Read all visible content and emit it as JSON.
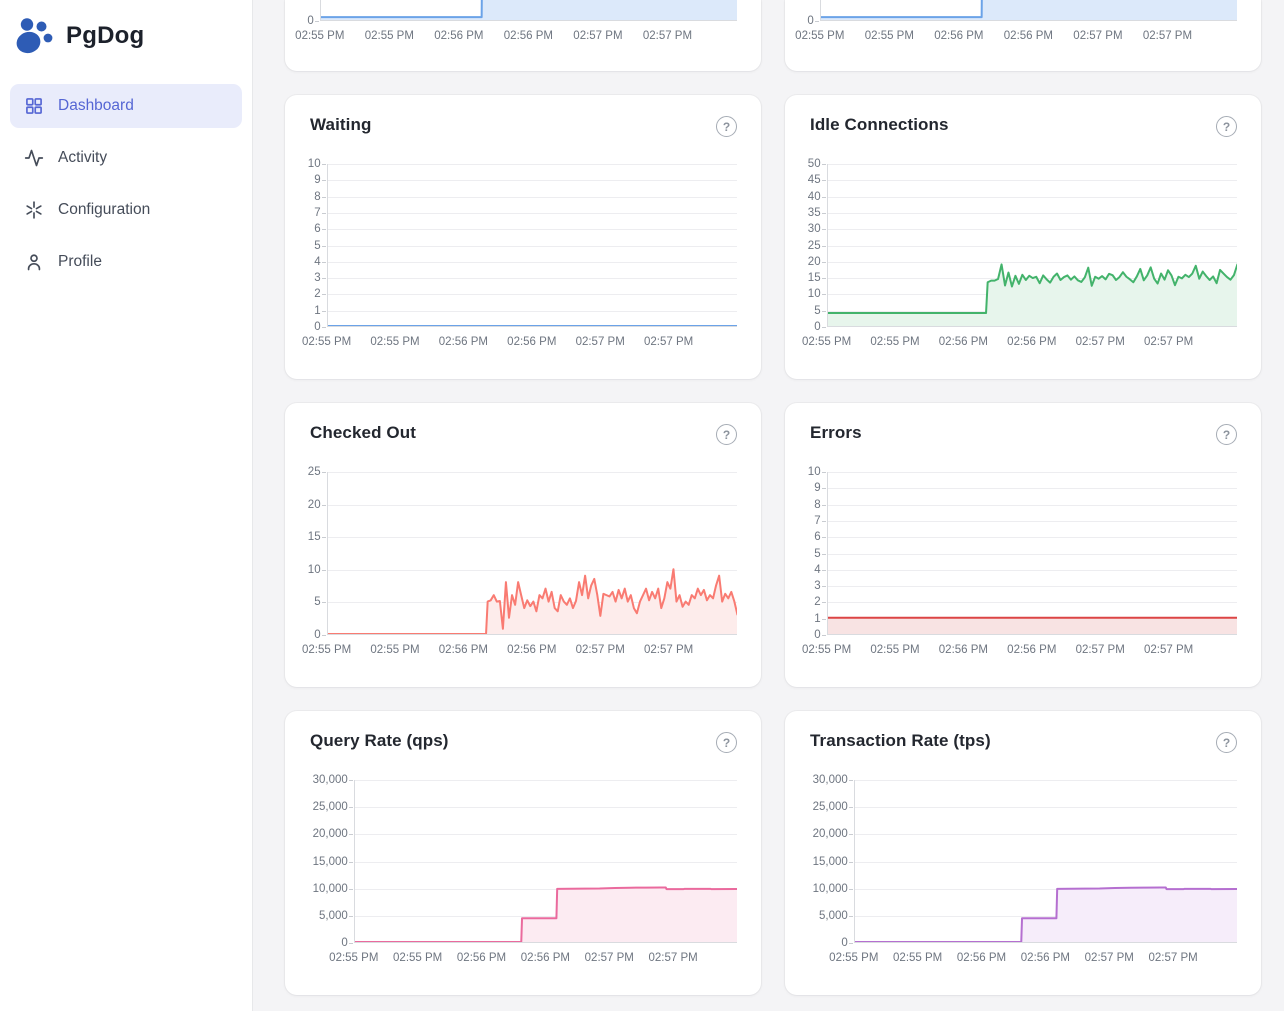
{
  "app": {
    "name": "PgDog"
  },
  "ui": {
    "help_glyph": "?"
  },
  "colors": {
    "accent_indigo": "#5566d4",
    "logo_blue": "#2e5cb5",
    "background": "#f4f4f6",
    "card": "#ffffff",
    "axis_text": "#6e7580"
  },
  "sidebar": {
    "items": [
      {
        "label": "Dashboard",
        "icon": "dashboard-grid-icon",
        "active": true
      },
      {
        "label": "Activity",
        "icon": "activity-pulse-icon",
        "active": false
      },
      {
        "label": "Configuration",
        "icon": "configuration-asterisk-icon",
        "active": false
      },
      {
        "label": "Profile",
        "icon": "profile-person-icon",
        "active": false
      }
    ]
  },
  "chart_data": [
    {
      "key": "top-left-partial",
      "title": null,
      "type": "area",
      "partial": true,
      "color": "#6ba3e8",
      "fill": "#dce9fa",
      "y_max": 7,
      "y_ticks": [
        0
      ],
      "y_tick_labels": [
        "0"
      ],
      "x_labels": [
        "02:55 PM",
        "02:55 PM",
        "02:56 PM",
        "02:56 PM",
        "02:57 PM",
        "02:57 PM"
      ],
      "points": [
        [
          0,
          1
        ],
        [
          0.386,
          1
        ],
        [
          0.389,
          60
        ],
        [
          1,
          60
        ]
      ]
    },
    {
      "key": "top-right-partial",
      "title": null,
      "type": "area",
      "partial": true,
      "color": "#6ba3e8",
      "fill": "#dce9fa",
      "y_max": 7,
      "y_ticks": [
        0
      ],
      "y_tick_labels": [
        "0"
      ],
      "x_labels": [
        "02:55 PM",
        "02:55 PM",
        "02:56 PM",
        "02:56 PM",
        "02:57 PM",
        "02:57 PM"
      ],
      "points": [
        [
          0,
          1
        ],
        [
          0.386,
          1
        ],
        [
          0.389,
          60
        ],
        [
          1,
          60
        ]
      ]
    },
    {
      "key": "waiting",
      "title": "Waiting",
      "type": "line",
      "partial": false,
      "color": "#6ba3e8",
      "fill": "#dce9fa",
      "y_max": 10,
      "y_ticks": [
        0,
        1,
        2,
        3,
        4,
        5,
        6,
        7,
        8,
        9,
        10
      ],
      "y_tick_labels": [
        "0",
        "1",
        "2",
        "3",
        "4",
        "5",
        "6",
        "7",
        "8",
        "9",
        "10"
      ],
      "x_labels": [
        "02:55 PM",
        "02:55 PM",
        "02:56 PM",
        "02:56 PM",
        "02:57 PM",
        "02:57 PM"
      ],
      "points": [
        [
          0,
          0
        ],
        [
          1,
          0
        ]
      ]
    },
    {
      "key": "idle-connections",
      "title": "Idle Connections",
      "type": "area",
      "partial": false,
      "color": "#43b36b",
      "fill": "#e7f5ec",
      "y_max": 50,
      "y_ticks": [
        0,
        5,
        10,
        15,
        20,
        25,
        30,
        35,
        40,
        45,
        50
      ],
      "y_tick_labels": [
        "0",
        "5",
        "10",
        "15",
        "20",
        "25",
        "30",
        "35",
        "40",
        "45",
        "50"
      ],
      "x_labels": [
        "02:55 PM",
        "02:55 PM",
        "02:56 PM",
        "02:56 PM",
        "02:57 PM",
        "02:57 PM"
      ],
      "flat": {
        "until": 0.386,
        "value": 4
      },
      "values": [
        13.5,
        14,
        14,
        14.5,
        19,
        12.5,
        16.5,
        12.2,
        15.5,
        13,
        15.8,
        14.2,
        15.5,
        14.8,
        15.2,
        13.2,
        15.6,
        14.4,
        13.4,
        15.2,
        16.2,
        14.2,
        15.1,
        15.6,
        14.3,
        15.3,
        14.1,
        13.6,
        15,
        18,
        12.4,
        15.2,
        14.6,
        15.4,
        14.4,
        16.1,
        15.7,
        14.2,
        15.1,
        16.6,
        15.2,
        14.4,
        13.5,
        15.3,
        17.6,
        14.1,
        15.6,
        18.1,
        14.6,
        13.1,
        16.2,
        14.3,
        17.2,
        15.6,
        12.6,
        15.2,
        14.7,
        15.8,
        15.1,
        16.2,
        18.6,
        14.6,
        16.8,
        15.4,
        14.2,
        15.3,
        13.2,
        17.3,
        16.2,
        15.1,
        14.3,
        15.7,
        19
      ]
    },
    {
      "key": "checked-out",
      "title": "Checked Out",
      "type": "area",
      "partial": false,
      "color": "#f97b72",
      "fill": "#fdeceb",
      "y_max": 25,
      "y_ticks": [
        0,
        5,
        10,
        15,
        20,
        25
      ],
      "y_tick_labels": [
        "0",
        "5",
        "10",
        "15",
        "20",
        "25"
      ],
      "x_labels": [
        "02:55 PM",
        "02:55 PM",
        "02:56 PM",
        "02:56 PM",
        "02:57 PM",
        "02:57 PM"
      ],
      "flat": {
        "until": 0.386,
        "value": 0
      },
      "values": [
        5,
        5.2,
        6,
        5,
        5.1,
        0.8,
        8,
        2.5,
        6,
        4.5,
        8,
        6,
        4,
        5.2,
        4.3,
        5,
        3.5,
        6,
        5.5,
        7,
        5,
        6.5,
        4,
        3.5,
        6,
        5,
        4.5,
        5.5,
        4,
        5.1,
        8,
        6,
        9,
        5.5,
        7.5,
        8.5,
        6,
        2.8,
        6.2,
        6,
        5.8,
        6.5,
        5,
        6.8,
        5.5,
        7,
        5,
        6,
        4,
        3.2,
        5,
        6,
        7,
        5.2,
        6.5,
        5.5,
        7,
        4,
        5.5,
        8,
        7,
        10,
        5,
        6,
        4.2,
        5,
        4.5,
        6,
        5.5,
        7,
        6,
        6.8,
        5.2,
        6,
        5.5,
        7.5,
        9,
        5,
        6.2,
        5.5,
        6.5,
        5,
        3
      ]
    },
    {
      "key": "errors",
      "title": "Errors",
      "type": "area",
      "partial": false,
      "color": "#dc4545",
      "fill": "#f8e3e3",
      "y_max": 10,
      "y_ticks": [
        0,
        1,
        2,
        3,
        4,
        5,
        6,
        7,
        8,
        9,
        10
      ],
      "y_tick_labels": [
        "0",
        "1",
        "2",
        "3",
        "4",
        "5",
        "6",
        "7",
        "8",
        "9",
        "10"
      ],
      "x_labels": [
        "02:55 PM",
        "02:55 PM",
        "02:56 PM",
        "02:56 PM",
        "02:57 PM",
        "02:57 PM"
      ],
      "points": [
        [
          0,
          1
        ],
        [
          1,
          1
        ]
      ]
    },
    {
      "key": "query-rate",
      "title": "Query Rate (qps)",
      "type": "area",
      "partial": false,
      "color": "#ea6a9d",
      "fill": "#fcebf2",
      "y_max": 30000,
      "y_ticks": [
        0,
        5000,
        10000,
        15000,
        20000,
        25000,
        30000
      ],
      "y_tick_labels": [
        "0",
        "5,000",
        "10,000",
        "15,000",
        "20,000",
        "25,000",
        "30,000"
      ],
      "x_labels": [
        "02:55 PM",
        "02:55 PM",
        "02:56 PM",
        "02:56 PM",
        "02:57 PM",
        "02:57 PM"
      ],
      "points": [
        [
          0,
          0
        ],
        [
          0.435,
          0
        ],
        [
          0.437,
          4400
        ],
        [
          0.527,
          4400
        ],
        [
          0.529,
          9850
        ],
        [
          0.6,
          9880
        ],
        [
          0.64,
          9900
        ],
        [
          0.68,
          10000
        ],
        [
          0.72,
          10050
        ],
        [
          0.76,
          10080
        ],
        [
          0.8,
          10100
        ],
        [
          0.813,
          10100
        ],
        [
          0.815,
          9800
        ],
        [
          0.86,
          9800
        ],
        [
          0.862,
          9830
        ],
        [
          0.93,
          9830
        ],
        [
          0.932,
          9800
        ],
        [
          1,
          9820
        ]
      ]
    },
    {
      "key": "transaction-rate",
      "title": "Transaction Rate (tps)",
      "type": "area",
      "partial": false,
      "color": "#b56fd0",
      "fill": "#f6edfa",
      "y_max": 30000,
      "y_ticks": [
        0,
        5000,
        10000,
        15000,
        20000,
        25000,
        30000
      ],
      "y_tick_labels": [
        "0",
        "5,000",
        "10,000",
        "15,000",
        "20,000",
        "25,000",
        "30,000"
      ],
      "x_labels": [
        "02:55 PM",
        "02:55 PM",
        "02:56 PM",
        "02:56 PM",
        "02:57 PM",
        "02:57 PM"
      ],
      "points": [
        [
          0,
          0
        ],
        [
          0.435,
          0
        ],
        [
          0.437,
          4400
        ],
        [
          0.527,
          4400
        ],
        [
          0.529,
          9850
        ],
        [
          0.6,
          9880
        ],
        [
          0.64,
          9900
        ],
        [
          0.68,
          10000
        ],
        [
          0.72,
          10050
        ],
        [
          0.76,
          10080
        ],
        [
          0.8,
          10100
        ],
        [
          0.813,
          10100
        ],
        [
          0.815,
          9800
        ],
        [
          0.86,
          9800
        ],
        [
          0.862,
          9830
        ],
        [
          0.93,
          9830
        ],
        [
          0.932,
          9800
        ],
        [
          1,
          9820
        ]
      ]
    }
  ]
}
